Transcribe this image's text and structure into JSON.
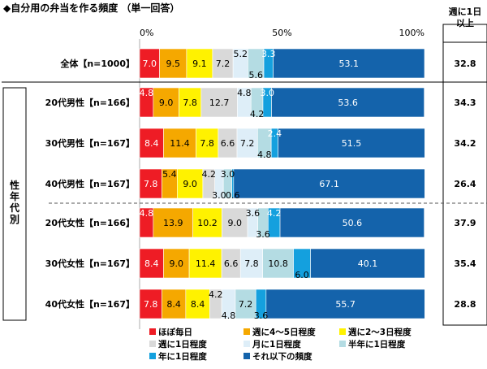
{
  "chart_data": {
    "type": "bar",
    "orientation": "horizontal",
    "stacked": true,
    "title": "◆自分用の弁当を作る頻度 （単一回答）",
    "xlim": [
      0,
      100
    ],
    "x_ticks": [
      "0%",
      "50%",
      "100%"
    ],
    "right_column_header": [
      "週に1日",
      "以上"
    ],
    "group_label": "性年代別",
    "categories": [
      "全体【n=1000】",
      "20代男性【n=166】",
      "30代男性【n=167】",
      "40代男性【n=167】",
      "20代女性【n=166】",
      "30代女性【n=167】",
      "40代女性【n=167】"
    ],
    "series": [
      {
        "name": "ほぼ毎日",
        "color": "#ee1c25",
        "values": [
          7.0,
          4.8,
          8.4,
          7.8,
          4.8,
          8.4,
          7.8
        ],
        "labels": [
          "7.0",
          "4.8",
          "8.4",
          "7.8",
          "4.8",
          "8.4",
          "7.8"
        ]
      },
      {
        "name": "週に4～5日程度",
        "color": "#f5a800",
        "values": [
          9.5,
          9.0,
          11.4,
          5.4,
          13.9,
          9.0,
          8.4
        ],
        "labels": [
          "9.5",
          "9.0",
          "11.4",
          "5.4",
          "13.9",
          "9.0",
          "8.4"
        ]
      },
      {
        "name": "週に2～3日程度",
        "color": "#fff200",
        "values": [
          9.1,
          7.8,
          7.8,
          9.0,
          10.2,
          11.4,
          8.4
        ],
        "labels": [
          "9.1",
          "7.8",
          "7.8",
          "9.0",
          "10.2",
          "11.4",
          "8.4"
        ]
      },
      {
        "name": "週に1日程度",
        "color": "#d9d9d9",
        "values": [
          7.2,
          12.7,
          6.6,
          4.2,
          9.0,
          6.6,
          4.2
        ],
        "labels": [
          "7.2",
          "12.7",
          "6.6",
          "4.2",
          "9.0",
          "6.6",
          "4.2"
        ]
      },
      {
        "name": "月に1日程度",
        "color": "#deeef8",
        "values": [
          5.2,
          4.8,
          7.2,
          3.0,
          3.6,
          7.8,
          4.8
        ],
        "labels": [
          "5.2",
          "4.8",
          "7.2",
          "3.0",
          "3.6",
          "7.8",
          "4.8"
        ]
      },
      {
        "name": "半年に1日程度",
        "color": "#b4dce3",
        "values": [
          5.6,
          4.2,
          4.8,
          3.0,
          3.6,
          10.8,
          7.2
        ],
        "labels": [
          "5.6",
          "4.2",
          "4.8",
          "3.0",
          "3.6",
          "10.8",
          "7.2"
        ]
      },
      {
        "name": "年に1日程度",
        "color": "#14a0de",
        "values": [
          3.3,
          3.0,
          2.4,
          0.6,
          4.2,
          6.0,
          3.6
        ],
        "labels": [
          "3.3",
          "3.0",
          "2.4",
          "0.6",
          "4.2",
          "6.0",
          "3.6"
        ]
      },
      {
        "name": "それ以下の頻度",
        "color": "#1463ab",
        "values": [
          53.1,
          53.6,
          51.5,
          67.1,
          50.6,
          40.1,
          55.7
        ],
        "labels": [
          "53.1",
          "53.6",
          "51.5",
          "67.1",
          "50.6",
          "40.1",
          "55.7"
        ]
      }
    ],
    "right_values": [
      "32.8",
      "34.3",
      "34.2",
      "26.4",
      "37.9",
      "35.4",
      "28.8"
    ],
    "legend_placement": "bottom"
  }
}
